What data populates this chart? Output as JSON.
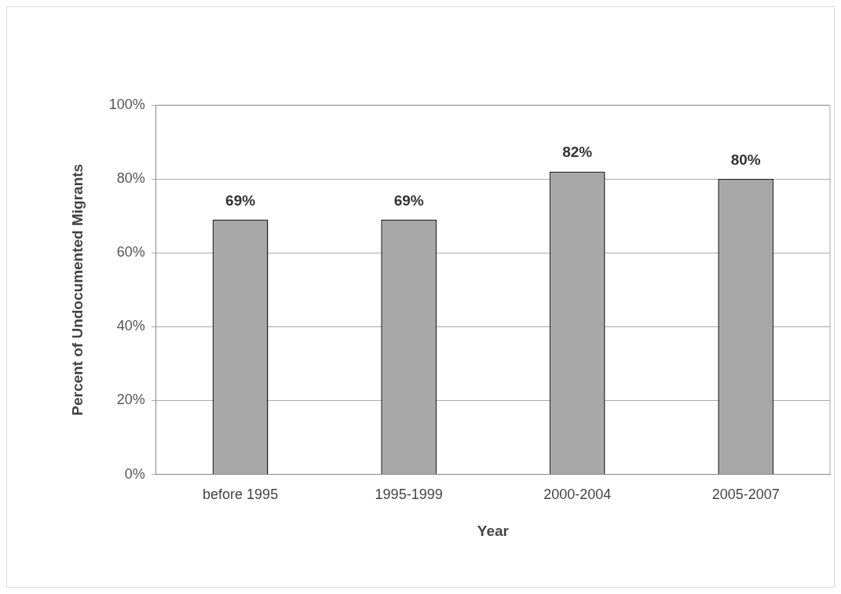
{
  "chart_data": {
    "type": "bar",
    "categories": [
      "before 1995",
      "1995-1999",
      "2000-2004",
      "2005-2007"
    ],
    "values": [
      69,
      69,
      82,
      80
    ],
    "value_labels": [
      "69%",
      "69%",
      "82%",
      "80%"
    ],
    "color": "#a8a8a8",
    "xlabel": "Year",
    "ylabel": "Percent of Undocumented Migrants",
    "ylim": [
      0,
      100
    ],
    "yticks": [
      {
        "value": 0,
        "label": "0%"
      },
      {
        "value": 20,
        "label": "20%"
      },
      {
        "value": 40,
        "label": "40%"
      },
      {
        "value": 60,
        "label": "60%"
      },
      {
        "value": 80,
        "label": "80%"
      },
      {
        "value": 100,
        "label": "100%"
      }
    ],
    "grid": "y",
    "legend": false
  }
}
